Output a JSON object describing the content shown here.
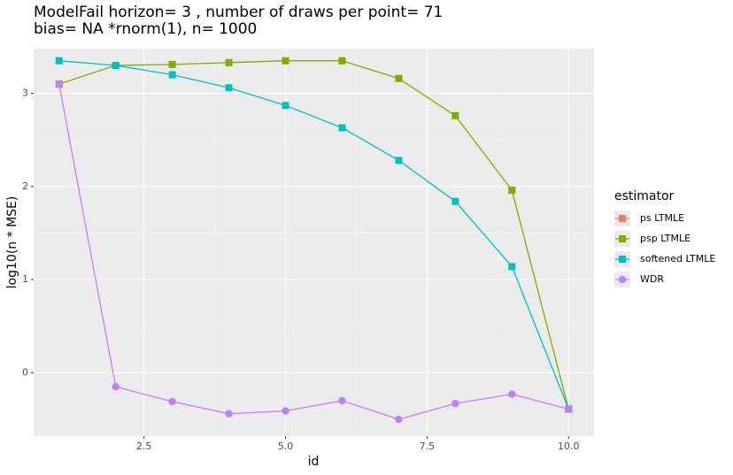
{
  "chart_data": {
    "type": "line",
    "title": "ModelFail  horizon= 3 , number of draws per point= 71",
    "subtitle": "bias= NA *rnorm(1), n= 1000",
    "x_label": "id",
    "y_label": "log10(n * MSE)",
    "legend_title": "estimator",
    "legend": "right",
    "grid": true,
    "x": [
      1,
      2,
      3,
      4,
      5,
      6,
      7,
      8,
      9,
      10
    ],
    "xlim": [
      0.55,
      10.45
    ],
    "xticks": [
      {
        "value": 2.5,
        "label": "2.5"
      },
      {
        "value": 5,
        "label": "5.0"
      },
      {
        "value": 7.5,
        "label": "7.5"
      },
      {
        "value": 10,
        "label": "10.0"
      }
    ],
    "ylim": [
      -0.68,
      3.48
    ],
    "yticks": [
      0,
      1,
      2,
      3
    ],
    "series": [
      {
        "name": "ps LTMLE",
        "color": "#F8766D",
        "shape": "square",
        "values": [
          null,
          null,
          null,
          null,
          null,
          null,
          null,
          null,
          null,
          null
        ]
      },
      {
        "name": "psp LTMLE",
        "color": "#7CAE00",
        "shape": "square",
        "values": [
          3.1,
          3.3,
          3.31,
          3.33,
          3.35,
          3.35,
          3.16,
          2.76,
          1.96,
          -0.39
        ]
      },
      {
        "name": "softened LTMLE",
        "color": "#00BFC4",
        "shape": "square",
        "values": [
          3.35,
          3.3,
          3.2,
          3.06,
          2.87,
          2.63,
          2.28,
          1.84,
          1.14,
          -0.39
        ]
      },
      {
        "name": "WDR",
        "color": "#C77CFF",
        "shape": "circle",
        "values": [
          3.1,
          -0.15,
          -0.31,
          -0.44,
          -0.41,
          -0.3,
          -0.5,
          -0.33,
          -0.23,
          -0.39
        ]
      }
    ]
  }
}
